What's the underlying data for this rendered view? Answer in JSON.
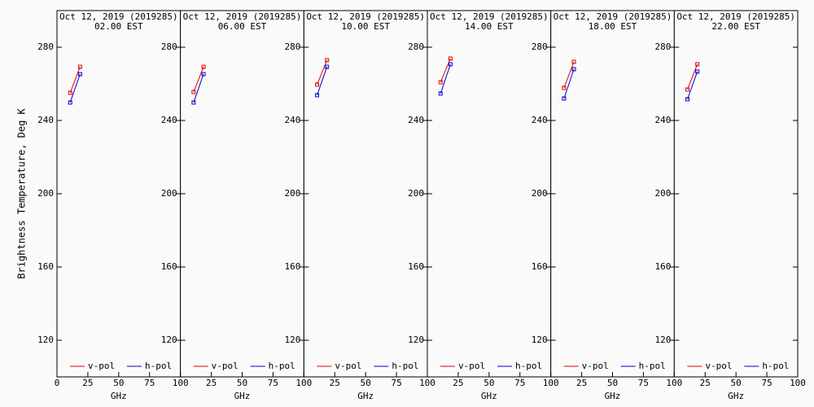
{
  "chart_data": [
    {
      "type": "line",
      "title": "Oct 12, 2019 (2019285)",
      "subtitle": "02.00 EST",
      "y_label": "Brightness Temperature, Deg K",
      "x_label": "GHz",
      "xlim": [
        0,
        100
      ],
      "xticks": [
        0,
        25,
        50,
        75,
        100
      ],
      "ylim": [
        100,
        300
      ],
      "yticks": [
        120,
        160,
        200,
        240,
        280
      ],
      "series": [
        {
          "name": "v-pol",
          "color": "#e00000",
          "x": [
            10.7,
            18.7
          ],
          "values": [
            255.1,
            269.3
          ]
        },
        {
          "name": "h-pol",
          "color": "#0000d0",
          "x": [
            10.7,
            18.7
          ],
          "values": [
            249.8,
            265.3
          ]
        }
      ]
    },
    {
      "type": "line",
      "title": "Oct 12, 2019 (2019285)",
      "subtitle": "06.00 EST",
      "x_label": "GHz",
      "xlim": [
        0,
        100
      ],
      "xticks": [
        0,
        25,
        50,
        75,
        100
      ],
      "ylim": [
        100,
        300
      ],
      "yticks": [
        120,
        160,
        200,
        240,
        280
      ],
      "series": [
        {
          "name": "v-pol",
          "color": "#e00000",
          "x": [
            10.7,
            18.7
          ],
          "values": [
            255.6,
            269.3
          ]
        },
        {
          "name": "h-pol",
          "color": "#0000d0",
          "x": [
            10.7,
            18.7
          ],
          "values": [
            249.8,
            265.3
          ]
        }
      ]
    },
    {
      "type": "line",
      "title": "Oct 12, 2019 (2019285)",
      "subtitle": "10.00 EST",
      "x_label": "GHz",
      "xlim": [
        0,
        100
      ],
      "xticks": [
        0,
        25,
        50,
        75,
        100
      ],
      "ylim": [
        100,
        300
      ],
      "yticks": [
        120,
        160,
        200,
        240,
        280
      ],
      "series": [
        {
          "name": "v-pol",
          "color": "#e00000",
          "x": [
            10.7,
            18.7
          ],
          "values": [
            259.6,
            272.9
          ]
        },
        {
          "name": "h-pol",
          "color": "#0000d0",
          "x": [
            10.7,
            18.7
          ],
          "values": [
            253.8,
            269.3
          ]
        }
      ]
    },
    {
      "type": "line",
      "title": "Oct 12, 2019 (2019285)",
      "subtitle": "14.00 EST",
      "x_label": "GHz",
      "xlim": [
        0,
        100
      ],
      "xticks": [
        0,
        25,
        50,
        75,
        100
      ],
      "ylim": [
        100,
        300
      ],
      "yticks": [
        120,
        160,
        200,
        240,
        280
      ],
      "series": [
        {
          "name": "v-pol",
          "color": "#e00000",
          "x": [
            10.7,
            18.7
          ],
          "values": [
            260.9,
            273.8
          ]
        },
        {
          "name": "h-pol",
          "color": "#0000d0",
          "x": [
            10.7,
            18.7
          ],
          "values": [
            254.7,
            270.7
          ]
        }
      ]
    },
    {
      "type": "line",
      "title": "Oct 12, 2019 (2019285)",
      "subtitle": "18.00 EST",
      "x_label": "GHz",
      "xlim": [
        0,
        100
      ],
      "xticks": [
        0,
        25,
        50,
        75,
        100
      ],
      "ylim": [
        100,
        300
      ],
      "yticks": [
        120,
        160,
        200,
        240,
        280
      ],
      "series": [
        {
          "name": "v-pol",
          "color": "#e00000",
          "x": [
            10.7,
            18.7
          ],
          "values": [
            257.8,
            272.0
          ]
        },
        {
          "name": "h-pol",
          "color": "#0000d0",
          "x": [
            10.7,
            18.7
          ],
          "values": [
            252.0,
            268.0
          ]
        }
      ]
    },
    {
      "type": "line",
      "title": "Oct 12, 2019 (2019285)",
      "subtitle": "22.00 EST",
      "x_label": "GHz",
      "xlim": [
        0,
        100
      ],
      "xticks": [
        0,
        25,
        50,
        75,
        100
      ],
      "ylim": [
        100,
        300
      ],
      "yticks": [
        120,
        160,
        200,
        240,
        280
      ],
      "series": [
        {
          "name": "v-pol",
          "color": "#e00000",
          "x": [
            10.7,
            18.7
          ],
          "values": [
            256.9,
            270.7
          ]
        },
        {
          "name": "h-pol",
          "color": "#0000d0",
          "x": [
            10.7,
            18.7
          ],
          "values": [
            251.6,
            266.7
          ]
        }
      ]
    }
  ]
}
